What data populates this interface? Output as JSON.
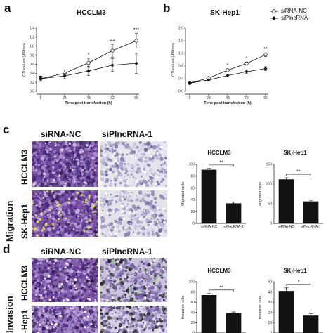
{
  "panels": {
    "a": "a",
    "b": "b",
    "c": "c",
    "d": "d"
  },
  "legend": {
    "items": [
      {
        "label": "siRNA-NC",
        "marker": "open-circle"
      },
      {
        "label": "siPlncRNA-",
        "marker": "filled-diamond"
      }
    ]
  },
  "micrograph_headers": {
    "c": [
      "siRNA-NC",
      "siPlncRNA-1"
    ],
    "d": [
      "siRNA-NC",
      "siPlncRNA-1"
    ]
  },
  "row_labels": {
    "c": [
      "HCCLM3",
      "SK-Hep1"
    ],
    "d": [
      "HCCLM3",
      "-Hep1"
    ]
  },
  "side_labels": {
    "c": "Migration",
    "d": "Invasion"
  },
  "colors": {
    "stain_dense": "#7c4fa6",
    "stain_light": "#c9c1dc",
    "bar": "#111111"
  },
  "chart_data": [
    {
      "type": "line",
      "title": "HCCLM3",
      "xlabel": "Time post transfection (h)",
      "ylabel": "OD values (450nm)",
      "x": [
        0,
        24,
        48,
        72,
        96
      ],
      "xticks": [
        "0",
        "24",
        "48",
        "72",
        "96"
      ],
      "ylim": [
        0,
        1.4
      ],
      "yticks": [
        "0.0",
        "0.2",
        "0.4",
        "0.6",
        "0.8",
        "1.0",
        "1.2",
        "1.4"
      ],
      "series": [
        {
          "name": "siRNA-NC",
          "values": [
            0.28,
            0.4,
            0.63,
            0.9,
            1.12
          ],
          "err": [
            0.06,
            0.07,
            0.1,
            0.14,
            0.16
          ]
        },
        {
          "name": "siPlncRNA-",
          "values": [
            0.28,
            0.34,
            0.45,
            0.58,
            0.62
          ],
          "err": [
            0.05,
            0.06,
            0.1,
            0.14,
            0.22
          ]
        }
      ],
      "annotations": [
        {
          "x": 48,
          "label": "*"
        },
        {
          "x": 72,
          "label": "++"
        },
        {
          "x": 96,
          "label": "***"
        }
      ]
    },
    {
      "type": "line",
      "title": "SK-Hep1",
      "xlabel": "Time post transfection (h)",
      "ylabel": "OD values (450nm)",
      "x": [
        0,
        24,
        48,
        72,
        96
      ],
      "xticks": [
        "0",
        "24",
        "48",
        "72",
        "96"
      ],
      "ylim": [
        0,
        2.0
      ],
      "yticks": [
        "0.0",
        "0.4",
        "0.8",
        "1.2",
        "1.6",
        "2.0"
      ],
      "series": [
        {
          "name": "siRNA-NC",
          "values": [
            0.26,
            0.42,
            0.67,
            0.88,
            1.16
          ],
          "err": [
            0.02,
            0.03,
            0.04,
            0.05,
            0.06
          ]
        },
        {
          "name": "siPlncRNA-",
          "values": [
            0.26,
            0.36,
            0.5,
            0.62,
            0.72
          ],
          "err": [
            0.02,
            0.03,
            0.04,
            0.05,
            0.06
          ]
        }
      ],
      "annotations": [
        {
          "x": 48,
          "label": "*"
        },
        {
          "x": 72,
          "label": "*"
        },
        {
          "x": 96,
          "label": "**"
        }
      ]
    },
    {
      "type": "bar",
      "title": "HCCLM3",
      "ylabel": "Migrated cells",
      "categories": [
        "siRNA-NC",
        "siPlncRNA-1"
      ],
      "values": [
        91,
        34
      ],
      "err": [
        2,
        2
      ],
      "ylim": [
        0,
        100
      ],
      "yticks": [
        "0",
        "20",
        "40",
        "60",
        "80",
        "100"
      ],
      "annotation": "**"
    },
    {
      "type": "bar",
      "title": "SK-Hep1",
      "ylabel": "Migrated cells",
      "categories": [
        "siRNA-NC",
        "siPlncRNA-1"
      ],
      "values": [
        112,
        56
      ],
      "err": [
        4,
        3
      ],
      "ylim": [
        0,
        150
      ],
      "yticks": [
        "0",
        "50",
        "100",
        "150"
      ],
      "annotation": "**"
    },
    {
      "type": "bar",
      "title": "HCCLM3",
      "ylabel": "Invasion cells",
      "categories": [
        "",
        ""
      ],
      "values": [
        74,
        39
      ],
      "err": [
        3,
        2
      ],
      "ylim": [
        0,
        100
      ],
      "yticks": [
        "0",
        "20",
        "40",
        "60",
        "80",
        "100"
      ],
      "annotation": "**"
    },
    {
      "type": "bar",
      "title": "SK-Hep1",
      "ylabel": "Invasion cells",
      "categories": [
        "",
        ""
      ],
      "values": [
        41,
        17
      ],
      "err": [
        3,
        2
      ],
      "ylim": [
        0,
        50
      ],
      "yticks": [
        "0",
        "10",
        "20",
        "30",
        "40",
        "50"
      ],
      "annotation": "*"
    }
  ]
}
